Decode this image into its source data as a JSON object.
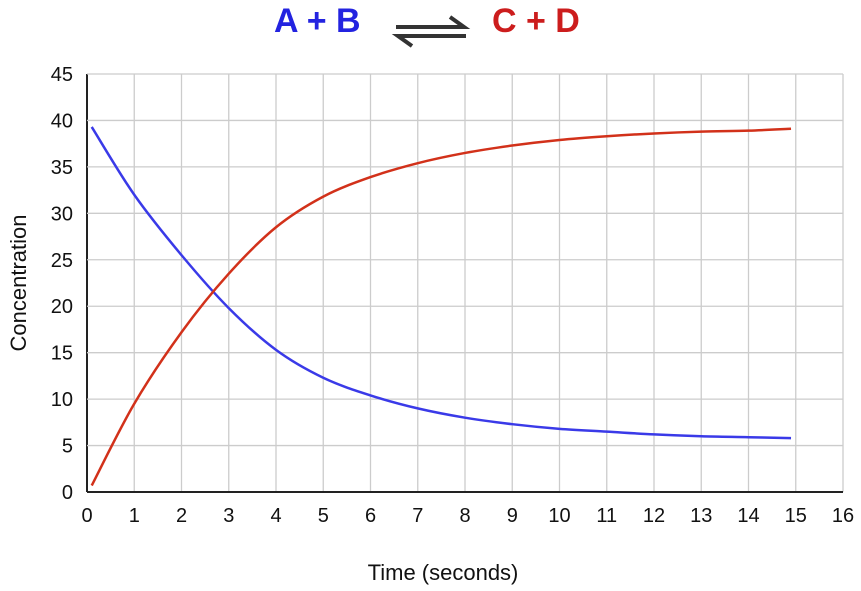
{
  "chart_data": {
    "type": "line",
    "title_left": "A + B",
    "title_right": "C + D",
    "title_arrow": "equilibrium-arrows-icon",
    "xlabel": "Time (seconds)",
    "ylabel": "Concentration",
    "xlim": [
      0,
      16
    ],
    "ylim": [
      0,
      45
    ],
    "xticks": [
      "0",
      "1",
      "2",
      "3",
      "4",
      "5",
      "6",
      "7",
      "8",
      "9",
      "10",
      "11",
      "12",
      "13",
      "14",
      "15",
      "16"
    ],
    "yticks": [
      "0",
      "5",
      "10",
      "15",
      "20",
      "25",
      "30",
      "35",
      "40",
      "45"
    ],
    "grid": true,
    "series": [
      {
        "color": "#3a3ae8",
        "x": [
          0.1,
          1,
          2,
          3,
          4,
          5,
          6,
          7,
          8,
          9,
          10,
          11,
          12,
          13,
          14,
          14.9
        ],
        "y": [
          39.3,
          32,
          25.5,
          19.8,
          15.3,
          12.3,
          10.4,
          9.0,
          8.0,
          7.3,
          6.8,
          6.5,
          6.2,
          6.0,
          5.9,
          5.8
        ]
      },
      {
        "color": "#d2311a",
        "x": [
          0.1,
          1,
          2,
          3,
          4,
          5,
          6,
          7,
          8,
          9,
          10,
          11,
          12,
          13,
          14,
          14.9
        ],
        "y": [
          0.7,
          9.5,
          17.2,
          23.5,
          28.5,
          31.8,
          33.9,
          35.4,
          36.5,
          37.3,
          37.9,
          38.3,
          38.6,
          38.8,
          38.9,
          39.1
        ]
      }
    ]
  }
}
